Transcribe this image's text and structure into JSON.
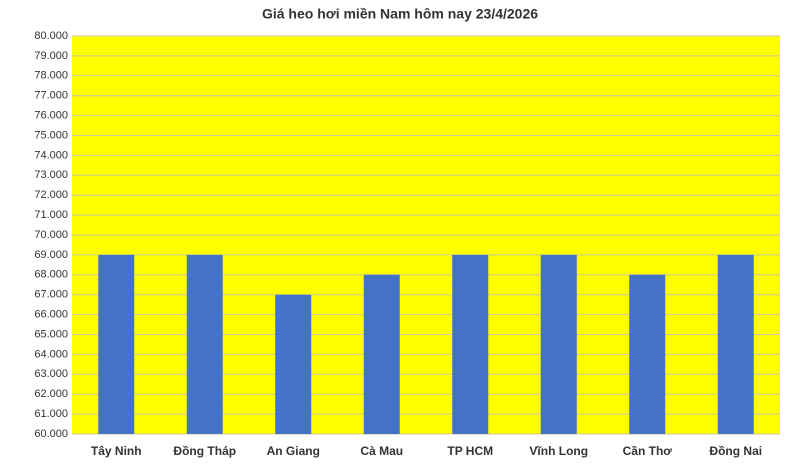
{
  "chart_data": {
    "type": "bar",
    "title": "Giá heo hơi miền Nam hôm nay 23/4/2026",
    "categories": [
      "Tây Ninh",
      "Đồng Tháp",
      "An Giang",
      "Cà Mau",
      "TP HCM",
      "Vĩnh Long",
      "Cần Thơ",
      "Đồng Nai"
    ],
    "values": [
      69000,
      69000,
      67000,
      68000,
      69000,
      69000,
      68000,
      69000
    ],
    "color": "#4472c4",
    "plot_background": "#ffff00",
    "ylim": [
      60000,
      80000
    ],
    "yticks": [
      {
        "value": 60000,
        "label": "60.000"
      },
      {
        "value": 61000,
        "label": "61.000"
      },
      {
        "value": 62000,
        "label": "62.000"
      },
      {
        "value": 63000,
        "label": "63.000"
      },
      {
        "value": 64000,
        "label": "64.000"
      },
      {
        "value": 65000,
        "label": "65.000"
      },
      {
        "value": 66000,
        "label": "66.000"
      },
      {
        "value": 67000,
        "label": "67.000"
      },
      {
        "value": 68000,
        "label": "68.000"
      },
      {
        "value": 69000,
        "label": "69.000"
      },
      {
        "value": 70000,
        "label": "70.000"
      },
      {
        "value": 71000,
        "label": "71.000"
      },
      {
        "value": 72000,
        "label": "72.000"
      },
      {
        "value": 73000,
        "label": "73.000"
      },
      {
        "value": 74000,
        "label": "74.000"
      },
      {
        "value": 75000,
        "label": "75.000"
      },
      {
        "value": 76000,
        "label": "76.000"
      },
      {
        "value": 77000,
        "label": "77.000"
      },
      {
        "value": 78000,
        "label": "78.000"
      },
      {
        "value": 79000,
        "label": "79.000"
      },
      {
        "value": 80000,
        "label": "80.000"
      }
    ],
    "grid": true
  }
}
